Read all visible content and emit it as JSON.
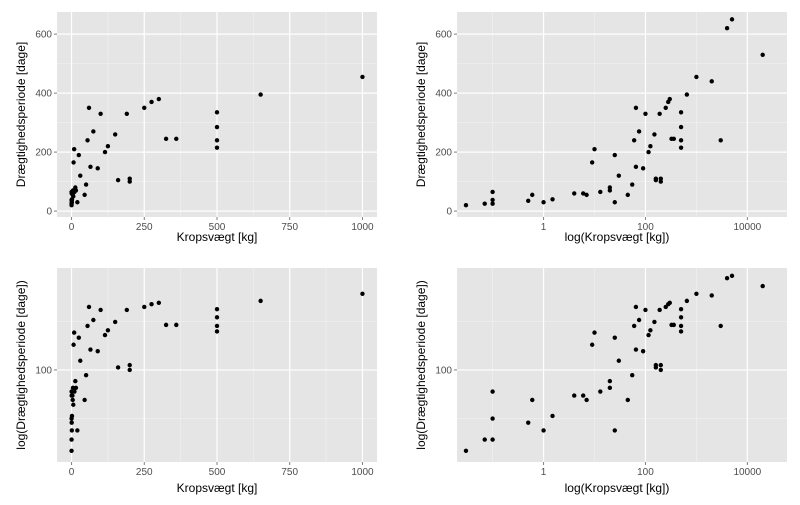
{
  "colors": {
    "panel_background": "#e5e5e5",
    "grid_major": "#ffffff",
    "grid_minor": "#f2f2f2",
    "point": "#000000",
    "tick_text": "#4d4d4d",
    "axis_title": "#000000"
  },
  "chart_data": [
    {
      "type": "scatter",
      "panel": "top-left",
      "xlabel": "Kropsvægt [kg]",
      "ylabel": "Drægtighedsperiode [dage]",
      "xscale": "linear",
      "yscale": "linear",
      "xlim": [
        -50,
        1050
      ],
      "ylim": [
        -20,
        675
      ],
      "xticks": [
        0,
        250,
        500,
        750,
        1000
      ],
      "xtick_labels": [
        "0",
        "250",
        "500",
        "750",
        "1000"
      ],
      "yticks": [
        0,
        200,
        400,
        600
      ],
      "ytick_labels": [
        "0",
        "200",
        "400",
        "600"
      ],
      "grid": true,
      "x": [
        0.03,
        0.1,
        0.1,
        0.1,
        0.5,
        0.5,
        1,
        1.5,
        3,
        4,
        5,
        6,
        7,
        9,
        10,
        13,
        15,
        20,
        25,
        30,
        45,
        50,
        55,
        60,
        65,
        75,
        90,
        100,
        115,
        125,
        150,
        160,
        190,
        200,
        200,
        250,
        275,
        300,
        325,
        360,
        500,
        500,
        500,
        500,
        650,
        1000
      ],
      "y": [
        20,
        25,
        38,
        65,
        35,
        60,
        30,
        40,
        60,
        55,
        70,
        50,
        165,
        210,
        65,
        80,
        70,
        30,
        190,
        120,
        55,
        90,
        240,
        350,
        150,
        270,
        145,
        330,
        200,
        220,
        260,
        105,
        330,
        100,
        110,
        350,
        370,
        380,
        245,
        245,
        335,
        285,
        240,
        215,
        395,
        455
      ]
    },
    {
      "type": "scatter",
      "panel": "top-right",
      "xlabel": "log(Kropsvægt [kg])",
      "ylabel": "Drægtighedsperiode [dage]",
      "xscale": "log",
      "yscale": "linear",
      "xlim": [
        0.02,
        60000
      ],
      "ylim": [
        -20,
        675
      ],
      "xticks": [
        1,
        100,
        10000
      ],
      "xtick_labels": [
        "1",
        "100",
        "10000"
      ],
      "yticks": [
        0,
        200,
        400,
        600
      ],
      "ytick_labels": [
        "0",
        "200",
        "400",
        "600"
      ],
      "grid": true,
      "x": [
        0.03,
        0.07,
        0.1,
        0.1,
        0.1,
        0.5,
        0.6,
        1,
        1.5,
        4,
        6,
        7,
        9,
        10,
        13,
        20,
        20,
        25,
        25,
        30,
        45,
        55,
        60,
        65,
        65,
        75,
        90,
        100,
        115,
        125,
        150,
        160,
        160,
        190,
        200,
        200,
        250,
        280,
        300,
        325,
        360,
        500,
        500,
        500,
        500,
        650,
        1000,
        2000,
        3000,
        4000,
        5000,
        20000
      ],
      "y": [
        20,
        25,
        25,
        38,
        65,
        35,
        55,
        30,
        40,
        60,
        60,
        55,
        165,
        210,
        65,
        70,
        80,
        190,
        30,
        120,
        55,
        90,
        240,
        350,
        150,
        270,
        145,
        330,
        200,
        220,
        260,
        105,
        110,
        330,
        100,
        110,
        350,
        370,
        380,
        245,
        245,
        335,
        285,
        240,
        215,
        395,
        455,
        440,
        240,
        620,
        650,
        530
      ]
    },
    {
      "type": "scatter",
      "panel": "bottom-left",
      "xlabel": "Kropsvægt [kg]",
      "ylabel": "log(Drægtighedsperiode [dage])",
      "xscale": "linear",
      "yscale": "log",
      "xlim": [
        -50,
        1050
      ],
      "ylim": [
        16,
        760
      ],
      "xticks": [
        0,
        250,
        500,
        750,
        1000
      ],
      "xtick_labels": [
        "0",
        "250",
        "500",
        "750",
        "1000"
      ],
      "yticks": [
        100
      ],
      "ytick_labels": [
        "100"
      ],
      "grid": true,
      "x": [
        0.03,
        0.1,
        0.1,
        0.1,
        0.5,
        0.5,
        1,
        1.5,
        3,
        4,
        5,
        6,
        7,
        9,
        10,
        13,
        15,
        20,
        25,
        30,
        45,
        50,
        55,
        60,
        65,
        75,
        90,
        100,
        115,
        125,
        150,
        160,
        190,
        200,
        200,
        250,
        275,
        300,
        325,
        360,
        500,
        500,
        500,
        500,
        650,
        1000
      ],
      "y": [
        20,
        25,
        38,
        65,
        35,
        60,
        30,
        40,
        60,
        55,
        70,
        50,
        165,
        210,
        65,
        80,
        70,
        30,
        190,
        120,
        55,
        90,
        240,
        350,
        150,
        270,
        145,
        330,
        200,
        220,
        260,
        105,
        330,
        100,
        110,
        350,
        370,
        380,
        245,
        245,
        335,
        285,
        240,
        215,
        395,
        455
      ]
    },
    {
      "type": "scatter",
      "panel": "bottom-right",
      "xlabel": "log(Kropsvægt [kg])",
      "ylabel": "log(Drægtighedsperiode [dage])",
      "xscale": "log",
      "yscale": "log",
      "xlim": [
        0.02,
        60000
      ],
      "ylim": [
        16,
        760
      ],
      "xticks": [
        1,
        100,
        10000
      ],
      "xtick_labels": [
        "1",
        "100",
        "10000"
      ],
      "yticks": [
        100
      ],
      "ytick_labels": [
        "100"
      ],
      "grid": true,
      "x": [
        0.03,
        0.07,
        0.1,
        0.1,
        0.1,
        0.5,
        0.6,
        1,
        1.5,
        4,
        6,
        7,
        9,
        10,
        13,
        20,
        20,
        25,
        25,
        30,
        45,
        55,
        60,
        65,
        65,
        75,
        90,
        100,
        115,
        125,
        150,
        160,
        160,
        190,
        200,
        200,
        250,
        280,
        300,
        325,
        360,
        500,
        500,
        500,
        500,
        650,
        1000,
        2000,
        3000,
        4000,
        5000,
        20000
      ],
      "y": [
        20,
        25,
        25,
        38,
        65,
        35,
        55,
        30,
        40,
        60,
        60,
        55,
        165,
        210,
        65,
        70,
        80,
        190,
        30,
        120,
        55,
        90,
        240,
        350,
        150,
        270,
        145,
        330,
        200,
        220,
        260,
        105,
        110,
        330,
        100,
        110,
        350,
        370,
        380,
        245,
        245,
        335,
        285,
        240,
        215,
        395,
        455,
        440,
        240,
        620,
        650,
        530
      ]
    }
  ]
}
